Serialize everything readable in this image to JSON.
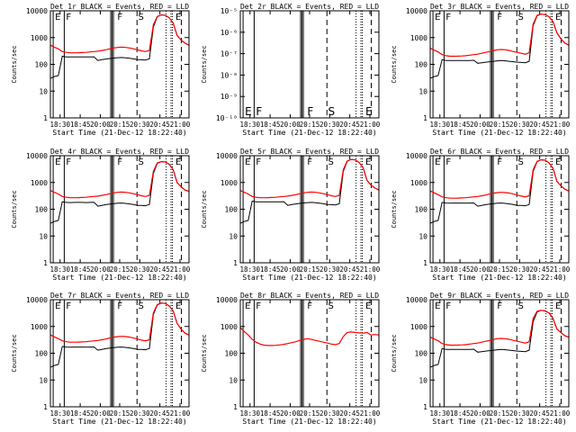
{
  "figure": {
    "start_time_label": "Start Time (21-Dec-12 18:22:40)",
    "ylabel": "Counts/sec",
    "xticks": [
      "18:30",
      "18:45",
      "20:00",
      "20:15",
      "20:30",
      "20:45",
      "21:00"
    ],
    "colors": {
      "events": "#000000",
      "lld": "#ff0000"
    }
  },
  "chart_data": [
    {
      "type": "line",
      "panel": 1,
      "title": "Det_1r BLACK = Events, RED = LLD",
      "yscale": "log",
      "ylim": [
        1,
        10000
      ],
      "yticks": [
        "1",
        "10",
        "100",
        "1000",
        "10000"
      ],
      "letters": [
        "E",
        "F",
        "F",
        "S",
        "E"
      ],
      "series": [
        {
          "name": "Events",
          "y": [
            30,
            35,
            38,
            200,
            190,
            188,
            190,
            190,
            190,
            188,
            190,
            192,
            140,
            150,
            158,
            165,
            172,
            178,
            180,
            175,
            168,
            160,
            150,
            148,
            145,
            160,
            2500,
            6000,
            7000,
            6800,
            5500,
            3500,
            1200,
            800,
            620,
            520
          ]
        },
        {
          "name": "LLD",
          "y": [
            520,
            440,
            380,
            300,
            280,
            270,
            270,
            272,
            275,
            280,
            290,
            300,
            310,
            330,
            350,
            380,
            410,
            430,
            440,
            430,
            410,
            380,
            350,
            320,
            300,
            330,
            3000,
            6200,
            7000,
            6800,
            5500,
            3500,
            1200,
            800,
            620,
            520
          ]
        }
      ]
    },
    {
      "type": "line",
      "panel": 2,
      "title": "Det_2r BLACK = Events, RED = LLD",
      "yscale": "log",
      "ylim": [
        1e-10,
        1e-05
      ],
      "yticks": [
        "10⁻¹⁰",
        "10⁻⁹",
        "10⁻⁸",
        "10⁻⁷",
        "10⁻⁶",
        "10⁻⁵"
      ],
      "letters": [
        "E",
        "F",
        "F",
        "S",
        "E"
      ],
      "series": []
    },
    {
      "type": "line",
      "panel": 3,
      "title": "Det_3r BLACK = Events, RED = LLD",
      "yscale": "log",
      "ylim": [
        1,
        10000
      ],
      "yticks": [
        "1",
        "10",
        "100",
        "1000",
        "10000"
      ],
      "letters": [
        "E",
        "F",
        "F",
        "S",
        "E"
      ],
      "series": [
        {
          "name": "Events",
          "y": [
            30,
            35,
            38,
            150,
            140,
            138,
            138,
            140,
            140,
            138,
            140,
            142,
            110,
            115,
            120,
            125,
            130,
            135,
            138,
            135,
            130,
            125,
            120,
            118,
            115,
            130,
            2800,
            6500,
            7500,
            7200,
            6000,
            4000,
            1500,
            900,
            620,
            520
          ]
        },
        {
          "name": "LLD",
          "y": [
            400,
            340,
            290,
            230,
            210,
            200,
            200,
            202,
            205,
            210,
            220,
            230,
            240,
            260,
            280,
            300,
            330,
            350,
            360,
            350,
            330,
            300,
            280,
            260,
            240,
            270,
            3200,
            6800,
            7500,
            7200,
            6000,
            4000,
            1500,
            900,
            620,
            520
          ]
        }
      ]
    },
    {
      "type": "line",
      "panel": 4,
      "title": "Det_4r BLACK = Events, RED = LLD",
      "yscale": "log",
      "ylim": [
        1,
        10000
      ],
      "yticks": [
        "1",
        "10",
        "100",
        "1000",
        "10000"
      ],
      "letters": [
        "E",
        "F",
        "F",
        "S",
        "E"
      ],
      "series": [
        {
          "name": "Events",
          "y": [
            30,
            35,
            38,
            190,
            180,
            178,
            180,
            180,
            180,
            178,
            180,
            182,
            130,
            140,
            148,
            155,
            162,
            168,
            170,
            165,
            158,
            150,
            140,
            138,
            135,
            150,
            2200,
            5200,
            6000,
            5800,
            4800,
            3000,
            1000,
            700,
            520,
            470
          ]
        },
        {
          "name": "LLD",
          "y": [
            500,
            430,
            370,
            300,
            280,
            270,
            270,
            272,
            275,
            280,
            290,
            300,
            310,
            330,
            350,
            380,
            410,
            430,
            440,
            430,
            410,
            380,
            350,
            320,
            300,
            330,
            2600,
            5400,
            6000,
            5800,
            4800,
            3000,
            1000,
            700,
            520,
            470
          ]
        }
      ]
    },
    {
      "type": "line",
      "panel": 5,
      "title": "Det_5r BLACK = Events, RED = LLD",
      "yscale": "log",
      "ylim": [
        1,
        10000
      ],
      "yticks": [
        "1",
        "10",
        "100",
        "1000",
        "10000"
      ],
      "letters": [
        "E",
        "F",
        "F",
        "S",
        "E"
      ],
      "series": [
        {
          "name": "Events",
          "y": [
            30,
            35,
            38,
            200,
            190,
            188,
            190,
            190,
            190,
            188,
            190,
            192,
            140,
            150,
            158,
            165,
            172,
            178,
            180,
            175,
            168,
            160,
            150,
            148,
            145,
            160,
            2600,
            6200,
            7200,
            7000,
            5600,
            3600,
            1200,
            800,
            620,
            520
          ]
        },
        {
          "name": "LLD",
          "y": [
            500,
            430,
            370,
            300,
            280,
            270,
            270,
            272,
            275,
            280,
            290,
            300,
            310,
            330,
            350,
            380,
            410,
            430,
            440,
            430,
            410,
            380,
            350,
            320,
            300,
            330,
            3000,
            6400,
            7200,
            7000,
            5600,
            3600,
            1200,
            800,
            620,
            520
          ]
        }
      ]
    },
    {
      "type": "line",
      "panel": 6,
      "title": "Det_6r BLACK = Events, RED = LLD",
      "yscale": "log",
      "ylim": [
        1,
        10000
      ],
      "yticks": [
        "1",
        "10",
        "100",
        "1000",
        "10000"
      ],
      "letters": [
        "E",
        "F",
        "F",
        "S",
        "E"
      ],
      "series": [
        {
          "name": "Events",
          "y": [
            30,
            35,
            38,
            180,
            170,
            168,
            170,
            170,
            170,
            168,
            170,
            172,
            130,
            140,
            148,
            155,
            162,
            168,
            170,
            165,
            158,
            150,
            140,
            138,
            135,
            150,
            2600,
            6000,
            7000,
            6800,
            5400,
            3400,
            1100,
            750,
            560,
            480
          ]
        },
        {
          "name": "LLD",
          "y": [
            480,
            410,
            350,
            290,
            270,
            260,
            260,
            262,
            265,
            270,
            280,
            290,
            300,
            320,
            340,
            370,
            400,
            420,
            430,
            420,
            400,
            370,
            340,
            310,
            290,
            320,
            3000,
            6200,
            7000,
            6800,
            5400,
            3400,
            1100,
            750,
            560,
            480
          ]
        }
      ]
    },
    {
      "type": "line",
      "panel": 7,
      "title": "Det_7r BLACK = Events, RED = LLD",
      "yscale": "log",
      "ylim": [
        1,
        10000
      ],
      "yticks": [
        "1",
        "10",
        "100",
        "1000",
        "10000"
      ],
      "letters": [
        "E",
        "F",
        "F",
        "S",
        "E"
      ],
      "series": [
        {
          "name": "Events",
          "y": [
            30,
            35,
            38,
            180,
            170,
            168,
            170,
            170,
            170,
            168,
            170,
            172,
            130,
            140,
            148,
            155,
            162,
            168,
            170,
            165,
            158,
            150,
            140,
            138,
            135,
            150,
            2800,
            6400,
            7500,
            7200,
            5800,
            3800,
            1300,
            800,
            560,
            480
          ]
        },
        {
          "name": "LLD",
          "y": [
            480,
            410,
            350,
            290,
            270,
            260,
            260,
            262,
            265,
            270,
            280,
            290,
            300,
            320,
            340,
            370,
            400,
            420,
            430,
            420,
            400,
            370,
            340,
            310,
            290,
            320,
            3200,
            6600,
            7500,
            7200,
            5800,
            3800,
            1300,
            800,
            560,
            480
          ]
        }
      ]
    },
    {
      "type": "line",
      "panel": 8,
      "title": "Det_8r BLACK = Events, RED = LLD",
      "yscale": "log",
      "ylim": [
        1,
        10000
      ],
      "yticks": [
        "1",
        "10",
        "100",
        "1000",
        "10000"
      ],
      "letters": [
        "E",
        "F",
        "F",
        "S",
        "E"
      ],
      "series": [
        {
          "name": "Events",
          "y": []
        },
        {
          "name": "LLD",
          "y": [
            900,
            650,
            480,
            330,
            260,
            220,
            200,
            195,
            195,
            198,
            205,
            215,
            230,
            250,
            270,
            300,
            330,
            350,
            330,
            300,
            280,
            260,
            240,
            220,
            210,
            230,
            420,
            600,
            620,
            600,
            580,
            560,
            600,
            480,
            500,
            480
          ]
        }
      ]
    },
    {
      "type": "line",
      "panel": 9,
      "title": "Det_9r BLACK = Events, RED = LLD",
      "yscale": "log",
      "ylim": [
        1,
        10000
      ],
      "yticks": [
        "1",
        "10",
        "100",
        "1000",
        "10000"
      ],
      "letters": [
        "E",
        "F",
        "F",
        "S",
        "E"
      ],
      "series": [
        {
          "name": "Events",
          "y": [
            30,
            35,
            38,
            150,
            140,
            138,
            138,
            140,
            140,
            138,
            140,
            142,
            110,
            115,
            120,
            125,
            130,
            135,
            138,
            135,
            130,
            125,
            120,
            118,
            115,
            130,
            1500,
            3500,
            4000,
            3800,
            3200,
            2000,
            800,
            600,
            450,
            400
          ]
        },
        {
          "name": "LLD",
          "y": [
            400,
            340,
            290,
            230,
            210,
            200,
            200,
            202,
            205,
            210,
            220,
            230,
            240,
            260,
            280,
            300,
            330,
            350,
            360,
            350,
            330,
            300,
            280,
            260,
            240,
            270,
            2000,
            3700,
            4000,
            3800,
            3200,
            2000,
            800,
            600,
            450,
            400
          ]
        }
      ]
    }
  ]
}
